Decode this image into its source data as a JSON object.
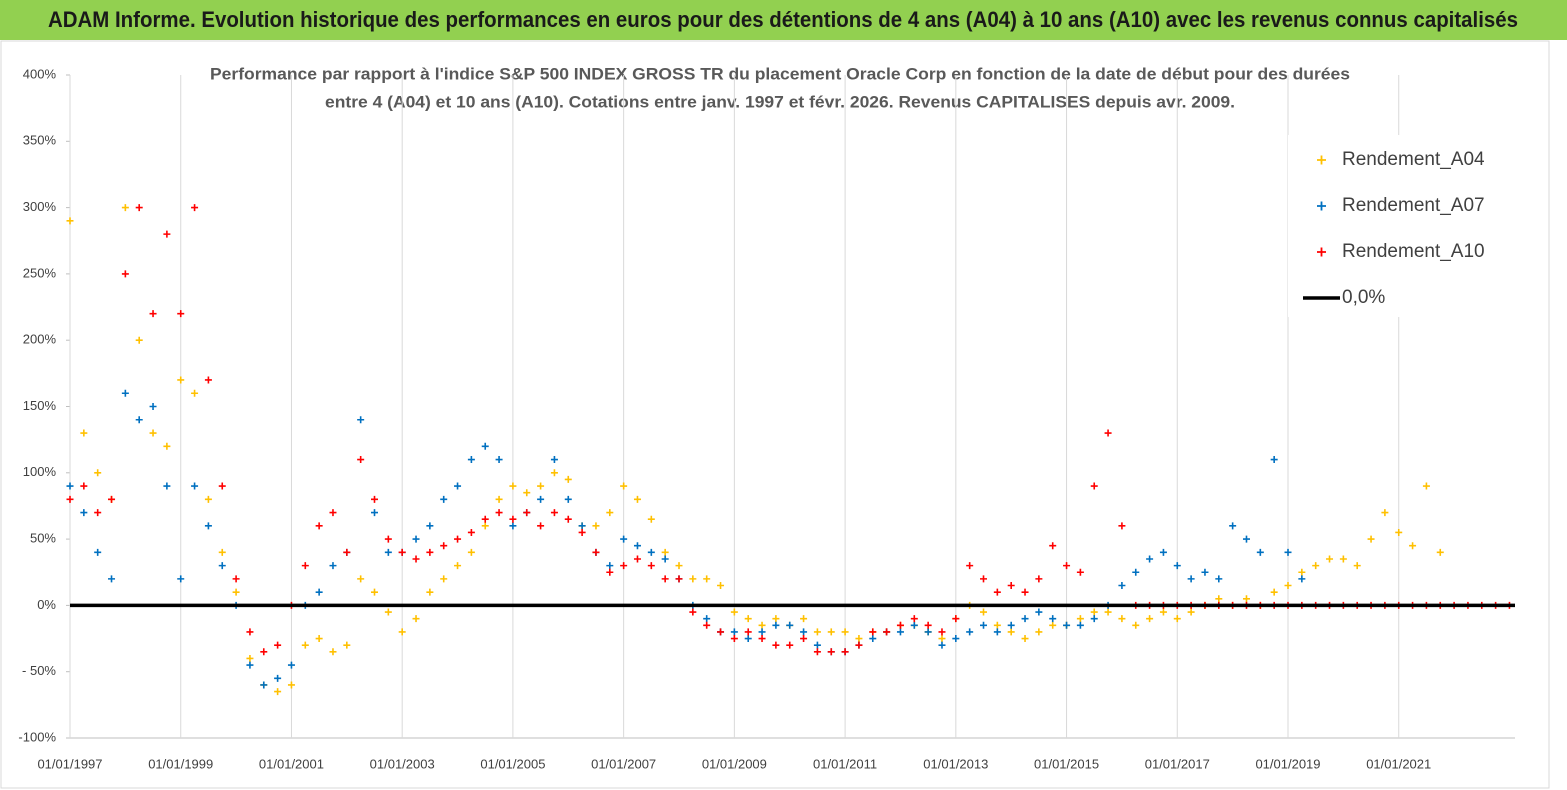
{
  "header": {
    "title": "ADAM Informe. Evolution historique des performances en euros pour des détentions de 4 ans (A04) à 10 ans (A10) avec les revenus connus capitalisés"
  },
  "chart_data": {
    "type": "scatter",
    "subtitle": [
      "Performance par rapport à l'indice S&P 500 INDEX GROSS TR  du placement Oracle Corp en fonction de la date de début pour des durées",
      "entre 4 (A04) et 10 ans (A10).  Cotations entre janv. 1997 et févr. 2026. Revenus CAPITALISES depuis avr. 2009."
    ],
    "x": [
      1997,
      1997.25,
      1997.5,
      1997.75,
      1998,
      1998.25,
      1998.5,
      1998.75,
      1999,
      1999.25,
      1999.5,
      1999.75,
      2000,
      2000.25,
      2000.5,
      2000.75,
      2001,
      2001.25,
      2001.5,
      2001.75,
      2002,
      2002.25,
      2002.5,
      2002.75,
      2003,
      2003.25,
      2003.5,
      2003.75,
      2004,
      2004.25,
      2004.5,
      2004.75,
      2005,
      2005.25,
      2005.5,
      2005.75,
      2006,
      2006.25,
      2006.5,
      2006.75,
      2007,
      2007.25,
      2007.5,
      2007.75,
      2008,
      2008.25,
      2008.5,
      2008.75,
      2009,
      2009.25,
      2009.5,
      2009.75,
      2010,
      2010.25,
      2010.5,
      2010.75,
      2011,
      2011.25,
      2011.5,
      2011.75,
      2012,
      2012.25,
      2012.5,
      2012.75,
      2013,
      2013.25,
      2013.5,
      2013.75,
      2014,
      2014.25,
      2014.5,
      2014.75,
      2015,
      2015.25,
      2015.5,
      2015.75,
      2016,
      2016.25,
      2016.5,
      2016.75,
      2017,
      2017.25,
      2017.5,
      2017.75,
      2018,
      2018.25,
      2018.5,
      2018.75,
      2019,
      2019.25,
      2019.5,
      2019.75,
      2020,
      2020.25,
      2020.5,
      2020.75,
      2021,
      2021.25,
      2021.5,
      2021.75,
      2022,
      2022.25,
      2022.5,
      2022.75,
      2023
    ],
    "series": [
      {
        "name": "Rendement_A04",
        "color": "#ffc000",
        "values": [
          290,
          130,
          100,
          80,
          300,
          200,
          130,
          120,
          170,
          160,
          80,
          40,
          10,
          -40,
          -60,
          -65,
          -60,
          -30,
          -25,
          -35,
          -30,
          20,
          10,
          -5,
          -20,
          -10,
          10,
          20,
          30,
          40,
          60,
          80,
          90,
          85,
          90,
          100,
          95,
          60,
          60,
          70,
          90,
          80,
          65,
          40,
          30,
          20,
          20,
          15,
          -5,
          -10,
          -15,
          -10,
          -15,
          -10,
          -20,
          -20,
          -20,
          -25,
          -20,
          -20,
          -15,
          -15,
          -20,
          -25,
          -10,
          0,
          -5,
          -15,
          -20,
          -25,
          -20,
          -15,
          -15,
          -10,
          -5,
          -5,
          -10,
          -15,
          -10,
          -5,
          -10,
          -5,
          0,
          5,
          0,
          5,
          0,
          10,
          15,
          25,
          30,
          35,
          35,
          30,
          50,
          70,
          55,
          45,
          90,
          40,
          null,
          null,
          null,
          null,
          null
        ]
      },
      {
        "name": "Rendement_A07",
        "color": "#0070c0",
        "values": [
          90,
          70,
          40,
          20,
          160,
          140,
          150,
          90,
          20,
          90,
          60,
          30,
          0,
          -45,
          -60,
          -55,
          -45,
          0,
          10,
          30,
          40,
          140,
          70,
          40,
          40,
          50,
          60,
          80,
          90,
          110,
          120,
          110,
          60,
          70,
          80,
          110,
          80,
          60,
          40,
          30,
          50,
          45,
          40,
          35,
          20,
          0,
          -10,
          -20,
          -20,
          -25,
          -20,
          -15,
          -15,
          -20,
          -30,
          -35,
          -35,
          -30,
          -25,
          -20,
          -20,
          -15,
          -20,
          -30,
          -25,
          -20,
          -15,
          -20,
          -15,
          -10,
          -5,
          -10,
          -15,
          -15,
          -10,
          0,
          15,
          25,
          35,
          40,
          30,
          20,
          25,
          20,
          60,
          50,
          40,
          110,
          40,
          20,
          null,
          null,
          null,
          null,
          null,
          null,
          null,
          null,
          null,
          null,
          null,
          null,
          null,
          null,
          null
        ]
      },
      {
        "name": "Rendement_A10",
        "color": "#ff0000",
        "values": [
          80,
          90,
          70,
          80,
          250,
          300,
          220,
          280,
          220,
          300,
          170,
          90,
          20,
          -20,
          -35,
          -30,
          0,
          30,
          60,
          70,
          40,
          110,
          80,
          50,
          40,
          35,
          40,
          45,
          50,
          55,
          65,
          70,
          65,
          70,
          60,
          70,
          65,
          55,
          40,
          25,
          30,
          35,
          30,
          20,
          20,
          -5,
          -15,
          -20,
          -25,
          -20,
          -25,
          -30,
          -30,
          -25,
          -35,
          -35,
          -35,
          -30,
          -20,
          -20,
          -15,
          -10,
          -15,
          -20,
          -10,
          30,
          20,
          10,
          15,
          10,
          20,
          45,
          30,
          25,
          90,
          130,
          60,
          0,
          0,
          0,
          0,
          0,
          0,
          0,
          0,
          0,
          0,
          0,
          0,
          0,
          0,
          0,
          0,
          0,
          0,
          0,
          0,
          0,
          0,
          0,
          0,
          0,
          0,
          0,
          0
        ]
      }
    ],
    "hline": {
      "name": "0,0%",
      "value": 0,
      "color": "#000000"
    },
    "xlim": [
      1997,
      2023.1
    ],
    "xticks": [
      {
        "value": 1997,
        "label": "01/01/1997"
      },
      {
        "value": 1999,
        "label": "01/01/1999"
      },
      {
        "value": 2001,
        "label": "01/01/2001"
      },
      {
        "value": 2003,
        "label": "01/01/2003"
      },
      {
        "value": 2005,
        "label": "01/01/2005"
      },
      {
        "value": 2007,
        "label": "01/01/2007"
      },
      {
        "value": 2009,
        "label": "01/01/2009"
      },
      {
        "value": 2011,
        "label": "01/01/2011"
      },
      {
        "value": 2013,
        "label": "01/01/2013"
      },
      {
        "value": 2015,
        "label": "01/01/2015"
      },
      {
        "value": 2017,
        "label": "01/01/2017"
      },
      {
        "value": 2019,
        "label": "01/01/2019"
      },
      {
        "value": 2021,
        "label": "01/01/2021"
      }
    ],
    "ylim": [
      -100,
      400
    ],
    "yticks": [
      {
        "value": -100,
        "label": "-100%"
      },
      {
        "value": -50,
        "label": "- 50%"
      },
      {
        "value": 0,
        "label": "0%"
      },
      {
        "value": 50,
        "label": "50%"
      },
      {
        "value": 100,
        "label": "100%"
      },
      {
        "value": 150,
        "label": "150%"
      },
      {
        "value": 200,
        "label": "200%"
      },
      {
        "value": 250,
        "label": "250%"
      },
      {
        "value": 300,
        "label": "300%"
      },
      {
        "value": 350,
        "label": "350%"
      },
      {
        "value": 400,
        "label": "400%"
      }
    ],
    "grid": "x",
    "legend": "upper right"
  }
}
